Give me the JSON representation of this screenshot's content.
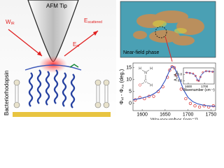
{
  "schematic": {
    "tip_label": "AFM Tip",
    "incident": [
      "W",
      "IR"
    ],
    "scattered": [
      "E",
      "scattered"
    ],
    "near_field": [
      "E",
      "nf"
    ],
    "protein_label": "Bacteriorhodopsin"
  },
  "image_panel": {
    "label": "Near-field phase"
  },
  "chart_data": [
    {
      "type": "line",
      "x_label": "Wavenumber (cm⁻¹)",
      "y_label_parts": [
        "Φ",
        "nf",
        " - Φ",
        "Au",
        " (deg.)"
      ],
      "xlim": [
        1580,
        1760
      ],
      "xticks": [
        1600,
        1650,
        1700,
        1750
      ],
      "ylim": [
        -3,
        17
      ],
      "yticks": [
        0,
        5,
        10,
        15
      ],
      "molecule_atoms": [
        "H",
        "N",
        "H",
        "C",
        "O",
        "H"
      ],
      "series": [
        {
          "color": "#d62728",
          "marker": "circle",
          "x": [
            1585,
            1595,
            1605,
            1615,
            1625,
            1635,
            1645,
            1655,
            1660,
            1665,
            1670,
            1675,
            1685,
            1695,
            1705,
            1715,
            1725,
            1735,
            1745,
            1755
          ],
          "values": [
            1.5,
            2.5,
            2,
            3,
            3,
            5,
            7,
            11,
            14,
            15.5,
            15,
            12,
            6,
            2,
            0,
            -1,
            -1.5,
            -1,
            -1.5,
            -1
          ]
        },
        {
          "color": "#2f4fbf",
          "x": [
            1580,
            1590,
            1600,
            1610,
            1620,
            1630,
            1640,
            1650,
            1660,
            1665,
            1670,
            1680,
            1690,
            1700,
            1710,
            1720,
            1730,
            1740,
            1750,
            1760
          ],
          "values": [
            1.5,
            1.9,
            2.3,
            2.8,
            3.5,
            4.6,
            6.4,
            9.6,
            14,
            15.6,
            15.2,
            11,
            5.8,
            2.5,
            0.8,
            -0.1,
            -0.6,
            -0.9,
            -1.1,
            -1.2
          ]
        }
      ]
    },
    {
      "type": "line",
      "x_label": "Wavenumber (cm⁻¹)",
      "y_label_parts": [
        "A",
        "nf",
        "/A",
        "Au"
      ],
      "xlim": [
        1570,
        1760
      ],
      "xticks": [
        1600,
        1700
      ],
      "ylim": [
        0.5,
        1.0
      ],
      "yticks": [
        0.6,
        0.8
      ],
      "series": [
        {
          "color": "#d62728",
          "marker": "circle",
          "x": [
            1590,
            1610,
            1630,
            1645,
            1655,
            1665,
            1675,
            1690,
            1710,
            1730,
            1750
          ],
          "values": [
            0.85,
            0.84,
            0.82,
            0.75,
            0.62,
            0.6,
            0.72,
            0.86,
            0.9,
            0.89,
            0.88
          ]
        },
        {
          "color": "#2f4fbf",
          "x": [
            1580,
            1600,
            1620,
            1640,
            1650,
            1660,
            1665,
            1670,
            1680,
            1700,
            1720,
            1740,
            1760
          ],
          "values": [
            0.86,
            0.85,
            0.83,
            0.78,
            0.7,
            0.61,
            0.6,
            0.65,
            0.78,
            0.88,
            0.9,
            0.89,
            0.88
          ]
        }
      ]
    }
  ]
}
